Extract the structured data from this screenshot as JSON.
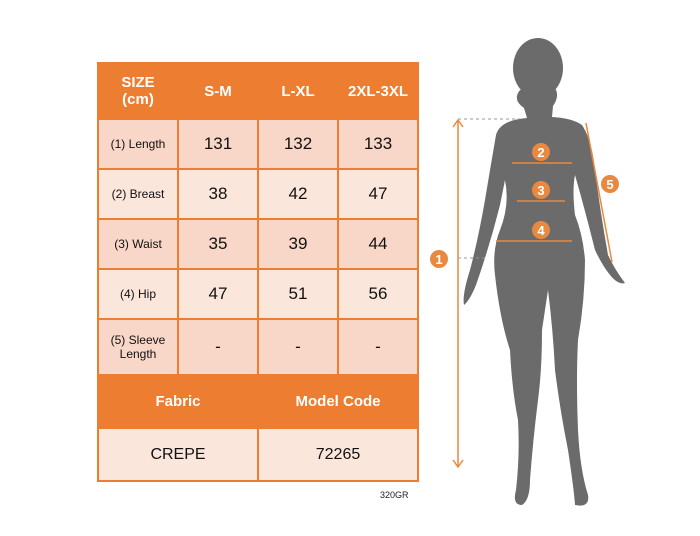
{
  "table": {
    "header": [
      "SIZE\n(cm)",
      "S-M",
      "L-XL",
      "2XL-3XL"
    ],
    "rows": [
      {
        "label": "(1) Length",
        "values": [
          "131",
          "132",
          "133"
        ]
      },
      {
        "label": "(2) Breast",
        "values": [
          "38",
          "42",
          "47"
        ]
      },
      {
        "label": "(3) Waist",
        "values": [
          "35",
          "39",
          "44"
        ]
      },
      {
        "label": "(4) Hip",
        "values": [
          "47",
          "51",
          "56"
        ]
      },
      {
        "label": "(5) Sleeve Length",
        "values": [
          "-",
          "-",
          "-"
        ]
      }
    ],
    "fabric_label": "Fabric",
    "model_code_label": "Model Code",
    "fabric_value": "CREPE",
    "model_code_value": "72265"
  },
  "product_code": "320GR",
  "markers": [
    "1",
    "2",
    "3",
    "4",
    "5"
  ],
  "colors": {
    "accent": "#ed7d31",
    "silhouette": "#6b6b6b",
    "row_dark": "#f9d7c8",
    "row_light": "#fbe6dc"
  }
}
